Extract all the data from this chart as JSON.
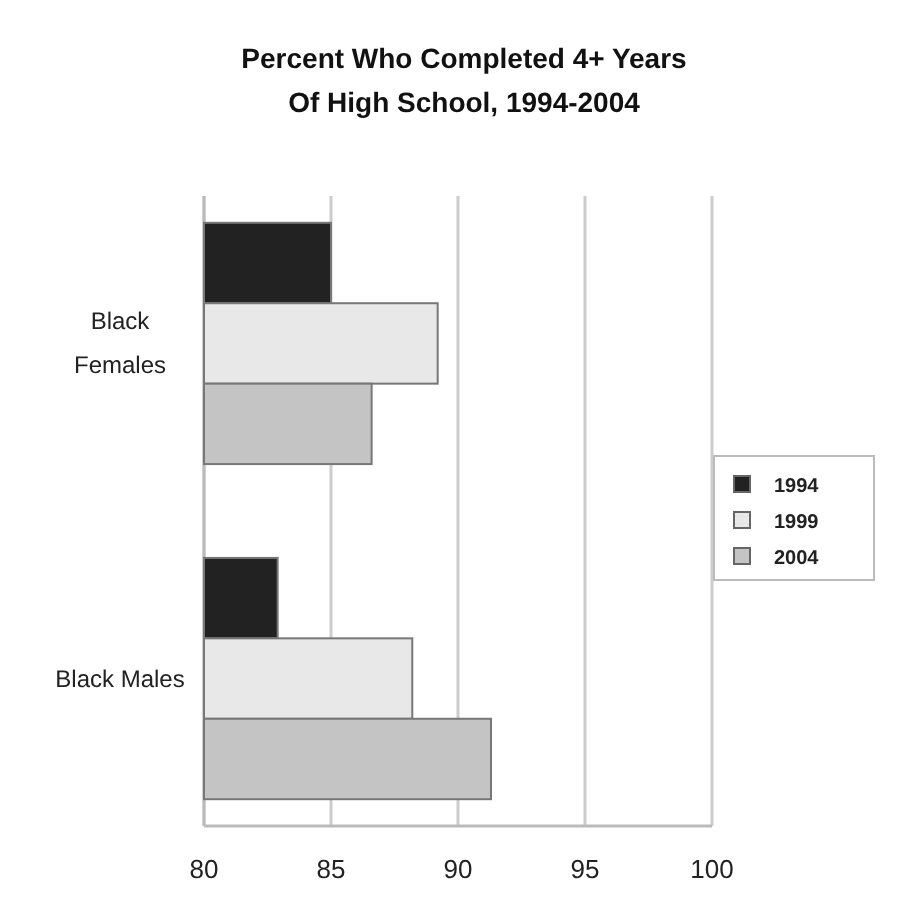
{
  "chart_data": {
    "type": "bar",
    "orientation": "horizontal",
    "title": "Percent Who Completed 4+ Years\nOf High School, 1994-2004",
    "categories": [
      "Black\nFemales",
      "Black Males"
    ],
    "series": [
      {
        "name": "1994",
        "color": "#222222",
        "values": [
          85.0,
          82.9
        ]
      },
      {
        "name": "1999",
        "color": "#e8e8e8",
        "values": [
          89.2,
          88.2
        ]
      },
      {
        "name": "2004",
        "color": "#c4c4c4",
        "values": [
          86.6,
          91.3
        ]
      }
    ],
    "xlim": [
      80,
      100
    ],
    "xticks": [
      80,
      85,
      90,
      95,
      100
    ],
    "grid": "x",
    "legend": "right"
  }
}
